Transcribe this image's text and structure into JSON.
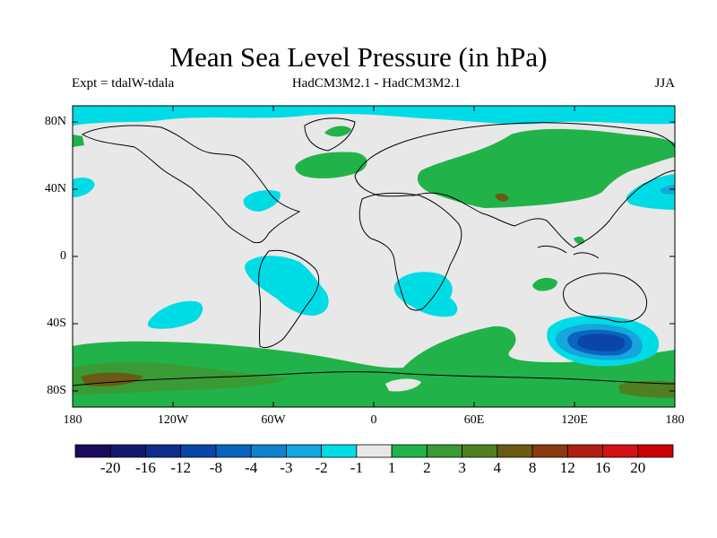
{
  "title": "Mean Sea Level Pressure (in hPa)",
  "experiment": "Expt = tdalW-tdala",
  "model_comparison": "HadCM3M2.1 - HadCM3M2.1",
  "season": "JJA",
  "lat_labels": [
    "80N",
    "40N",
    "0",
    "40S",
    "80S"
  ],
  "lon_labels": [
    "180",
    "120W",
    "60W",
    "0",
    "60E",
    "120E",
    "180"
  ],
  "colorbar": {
    "labels": [
      "-20",
      "-16",
      "-12",
      "-8",
      "-4",
      "-3",
      "-2",
      "-1",
      "1",
      "2",
      "3",
      "4",
      "8",
      "12",
      "16",
      "20"
    ],
    "colors": [
      "#1c0a5c",
      "#121a6e",
      "#0f2d8c",
      "#0a46a8",
      "#0a64be",
      "#0f82cd",
      "#14a6dc",
      "#00dce6",
      "#e8e8e8",
      "#22b24a",
      "#3a9a34",
      "#4f7f22",
      "#6a5a14",
      "#8b3a10",
      "#b01e12",
      "#d21214",
      "#cc0000"
    ]
  },
  "colors": {
    "background": "#e8e8e8",
    "cyan": "#00dce6",
    "blue_light": "#14a6dc",
    "blue_mid": "#0a64be",
    "blue_dark": "#0a46a8",
    "green": "#22b24a",
    "green_dark": "#3a9a34",
    "brown": "#6a5a14",
    "olive": "#4f7f22"
  }
}
